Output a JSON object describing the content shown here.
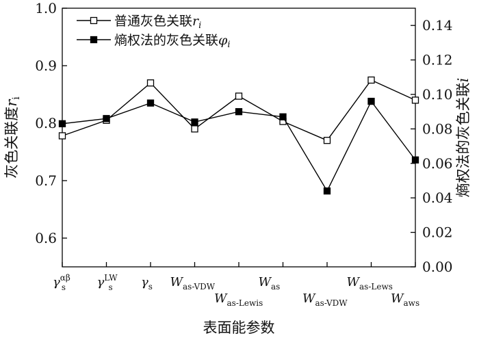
{
  "chart_data": {
    "type": "line",
    "categories": [
      {
        "base": "γ",
        "sub": "s",
        "sup": "αβ"
      },
      {
        "base": "γ",
        "sub": "s",
        "sup": "LW"
      },
      {
        "base": "γ",
        "sub": "s",
        "sup": ""
      },
      {
        "base": "W",
        "sub": "as-VDW",
        "sup": ""
      },
      {
        "base": "W",
        "sub": "as-Lewis",
        "sup": ""
      },
      {
        "base": "W",
        "sub": "as",
        "sup": ""
      },
      {
        "base": "W",
        "sub": "as-VDW",
        "sup": ""
      },
      {
        "base": "W",
        "sub": "as-Lews",
        "sup": ""
      },
      {
        "base": "W",
        "sub": "aws",
        "sup": ""
      }
    ],
    "xlabel": "表面能参数",
    "y_left": {
      "label_main": "灰色关联度",
      "label_var": "r",
      "label_sub": "i",
      "range": [
        0.55,
        1.0
      ],
      "ticks": [
        "0.6",
        "0.7",
        "0.8",
        "0.9",
        "1.0"
      ]
    },
    "y_right": {
      "label_main": "熵权法的灰色关联",
      "label_var": "i",
      "range": [
        0.0,
        0.15
      ],
      "ticks": [
        "0.00",
        "0.02",
        "0.04",
        "0.06",
        "0.08",
        "0.10",
        "0.12",
        "0.14"
      ]
    },
    "series": [
      {
        "name_main": "普通灰色关联",
        "name_var": "r",
        "name_sub": "i",
        "axis": "left",
        "marker": "open-square",
        "values": [
          0.778,
          0.805,
          0.87,
          0.79,
          0.847,
          0.803,
          0.77,
          0.875,
          0.84
        ]
      },
      {
        "name_main": "熵权法的灰色关联",
        "name_var": "φ",
        "name_sub": "i",
        "axis": "right",
        "marker": "filled-square",
        "values": [
          0.083,
          0.086,
          0.095,
          0.084,
          0.09,
          0.087,
          0.044,
          0.096,
          0.062
        ]
      }
    ],
    "legend_position": "top-left",
    "grid": false,
    "color": "#000000"
  }
}
